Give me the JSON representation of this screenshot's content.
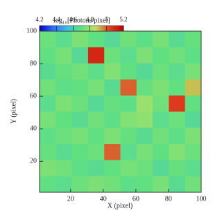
{
  "chart_data": {
    "type": "heatmap",
    "colorbar_label": "log₁₀[Photons/pixel]",
    "clim": [
      4.2,
      5.2
    ],
    "cticks": [
      4.2,
      4.4,
      4.6,
      4.8,
      5,
      5.2
    ],
    "colormap": [
      "#0000c0",
      "#3070ff",
      "#40c0e0",
      "#60e080",
      "#c0e060",
      "#e04020",
      "#c00000"
    ],
    "xlabel": "X (pixel)",
    "ylabel": "Y (pixel)",
    "xlim": [
      1,
      100
    ],
    "ylim": [
      1,
      100
    ],
    "xticks": [
      20,
      40,
      60,
      80,
      100
    ],
    "yticks": [
      20,
      40,
      60,
      80,
      100
    ],
    "z": [
      [
        4.72,
        4.68,
        4.75,
        4.7,
        4.66,
        4.73,
        4.69,
        4.74,
        4.67,
        4.71
      ],
      [
        4.7,
        4.74,
        4.66,
        5.1,
        4.72,
        4.68,
        4.75,
        4.7,
        4.73,
        4.69
      ],
      [
        4.67,
        4.71,
        4.73,
        4.69,
        4.76,
        4.7,
        4.66,
        4.72,
        4.68,
        4.74
      ],
      [
        4.73,
        4.69,
        4.7,
        4.74,
        4.67,
        5.0,
        4.71,
        4.75,
        4.7,
        4.9
      ],
      [
        4.68,
        4.75,
        4.72,
        4.66,
        4.71,
        4.69,
        4.8,
        4.73,
        5.05,
        4.7
      ],
      [
        4.74,
        4.7,
        4.67,
        4.73,
        4.69,
        4.76,
        4.78,
        4.68,
        4.72,
        4.66
      ],
      [
        4.69,
        4.72,
        4.74,
        4.7,
        4.75,
        4.71,
        4.67,
        4.73,
        4.69,
        4.75
      ],
      [
        4.71,
        4.67,
        4.7,
        4.72,
        5.0,
        4.68,
        4.74,
        4.7,
        4.76,
        4.72
      ],
      [
        4.75,
        4.73,
        4.69,
        4.67,
        4.7,
        4.74,
        4.72,
        4.66,
        4.71,
        4.68
      ],
      [
        4.7,
        4.68,
        4.72,
        4.75,
        4.73,
        4.69,
        4.7,
        4.74,
        4.67,
        4.73
      ]
    ]
  }
}
